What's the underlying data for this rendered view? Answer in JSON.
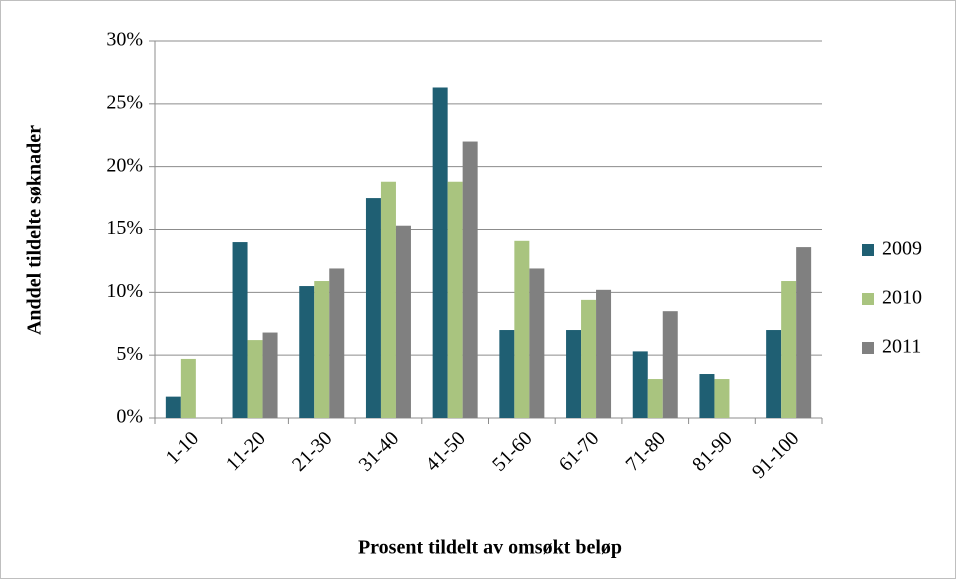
{
  "chart_data": {
    "type": "bar",
    "y_label": "Anddel tildelte søknader",
    "x_label": "Prosent tildelt av omsøkt beløp",
    "categories": [
      "1-10",
      "11-20",
      "21-30",
      "31-40",
      "41-50",
      "51-60",
      "61-70",
      "71-80",
      "81-90",
      "91-100"
    ],
    "series": [
      {
        "name": "2009",
        "color": "#1f5f73",
        "values": [
          1.7,
          14.0,
          10.5,
          17.5,
          26.3,
          7.0,
          7.0,
          5.3,
          3.5,
          7.0
        ]
      },
      {
        "name": "2010",
        "color": "#a9c47f",
        "values": [
          4.7,
          6.2,
          10.9,
          18.8,
          18.8,
          14.1,
          9.4,
          3.1,
          3.1,
          10.9
        ]
      },
      {
        "name": "2011",
        "color": "#808080",
        "values": [
          0,
          6.8,
          11.9,
          15.3,
          22.0,
          11.9,
          10.2,
          8.5,
          0,
          13.6
        ]
      }
    ],
    "ylim": [
      0,
      30
    ],
    "yticks": [
      {
        "value": 0,
        "label": "0%"
      },
      {
        "value": 5,
        "label": "5%"
      },
      {
        "value": 10,
        "label": "10%"
      },
      {
        "value": 15,
        "label": "15%"
      },
      {
        "value": 20,
        "label": "20%"
      },
      {
        "value": 25,
        "label": "25%"
      },
      {
        "value": 30,
        "label": "30%"
      }
    ],
    "grid": true,
    "legend": "right"
  }
}
